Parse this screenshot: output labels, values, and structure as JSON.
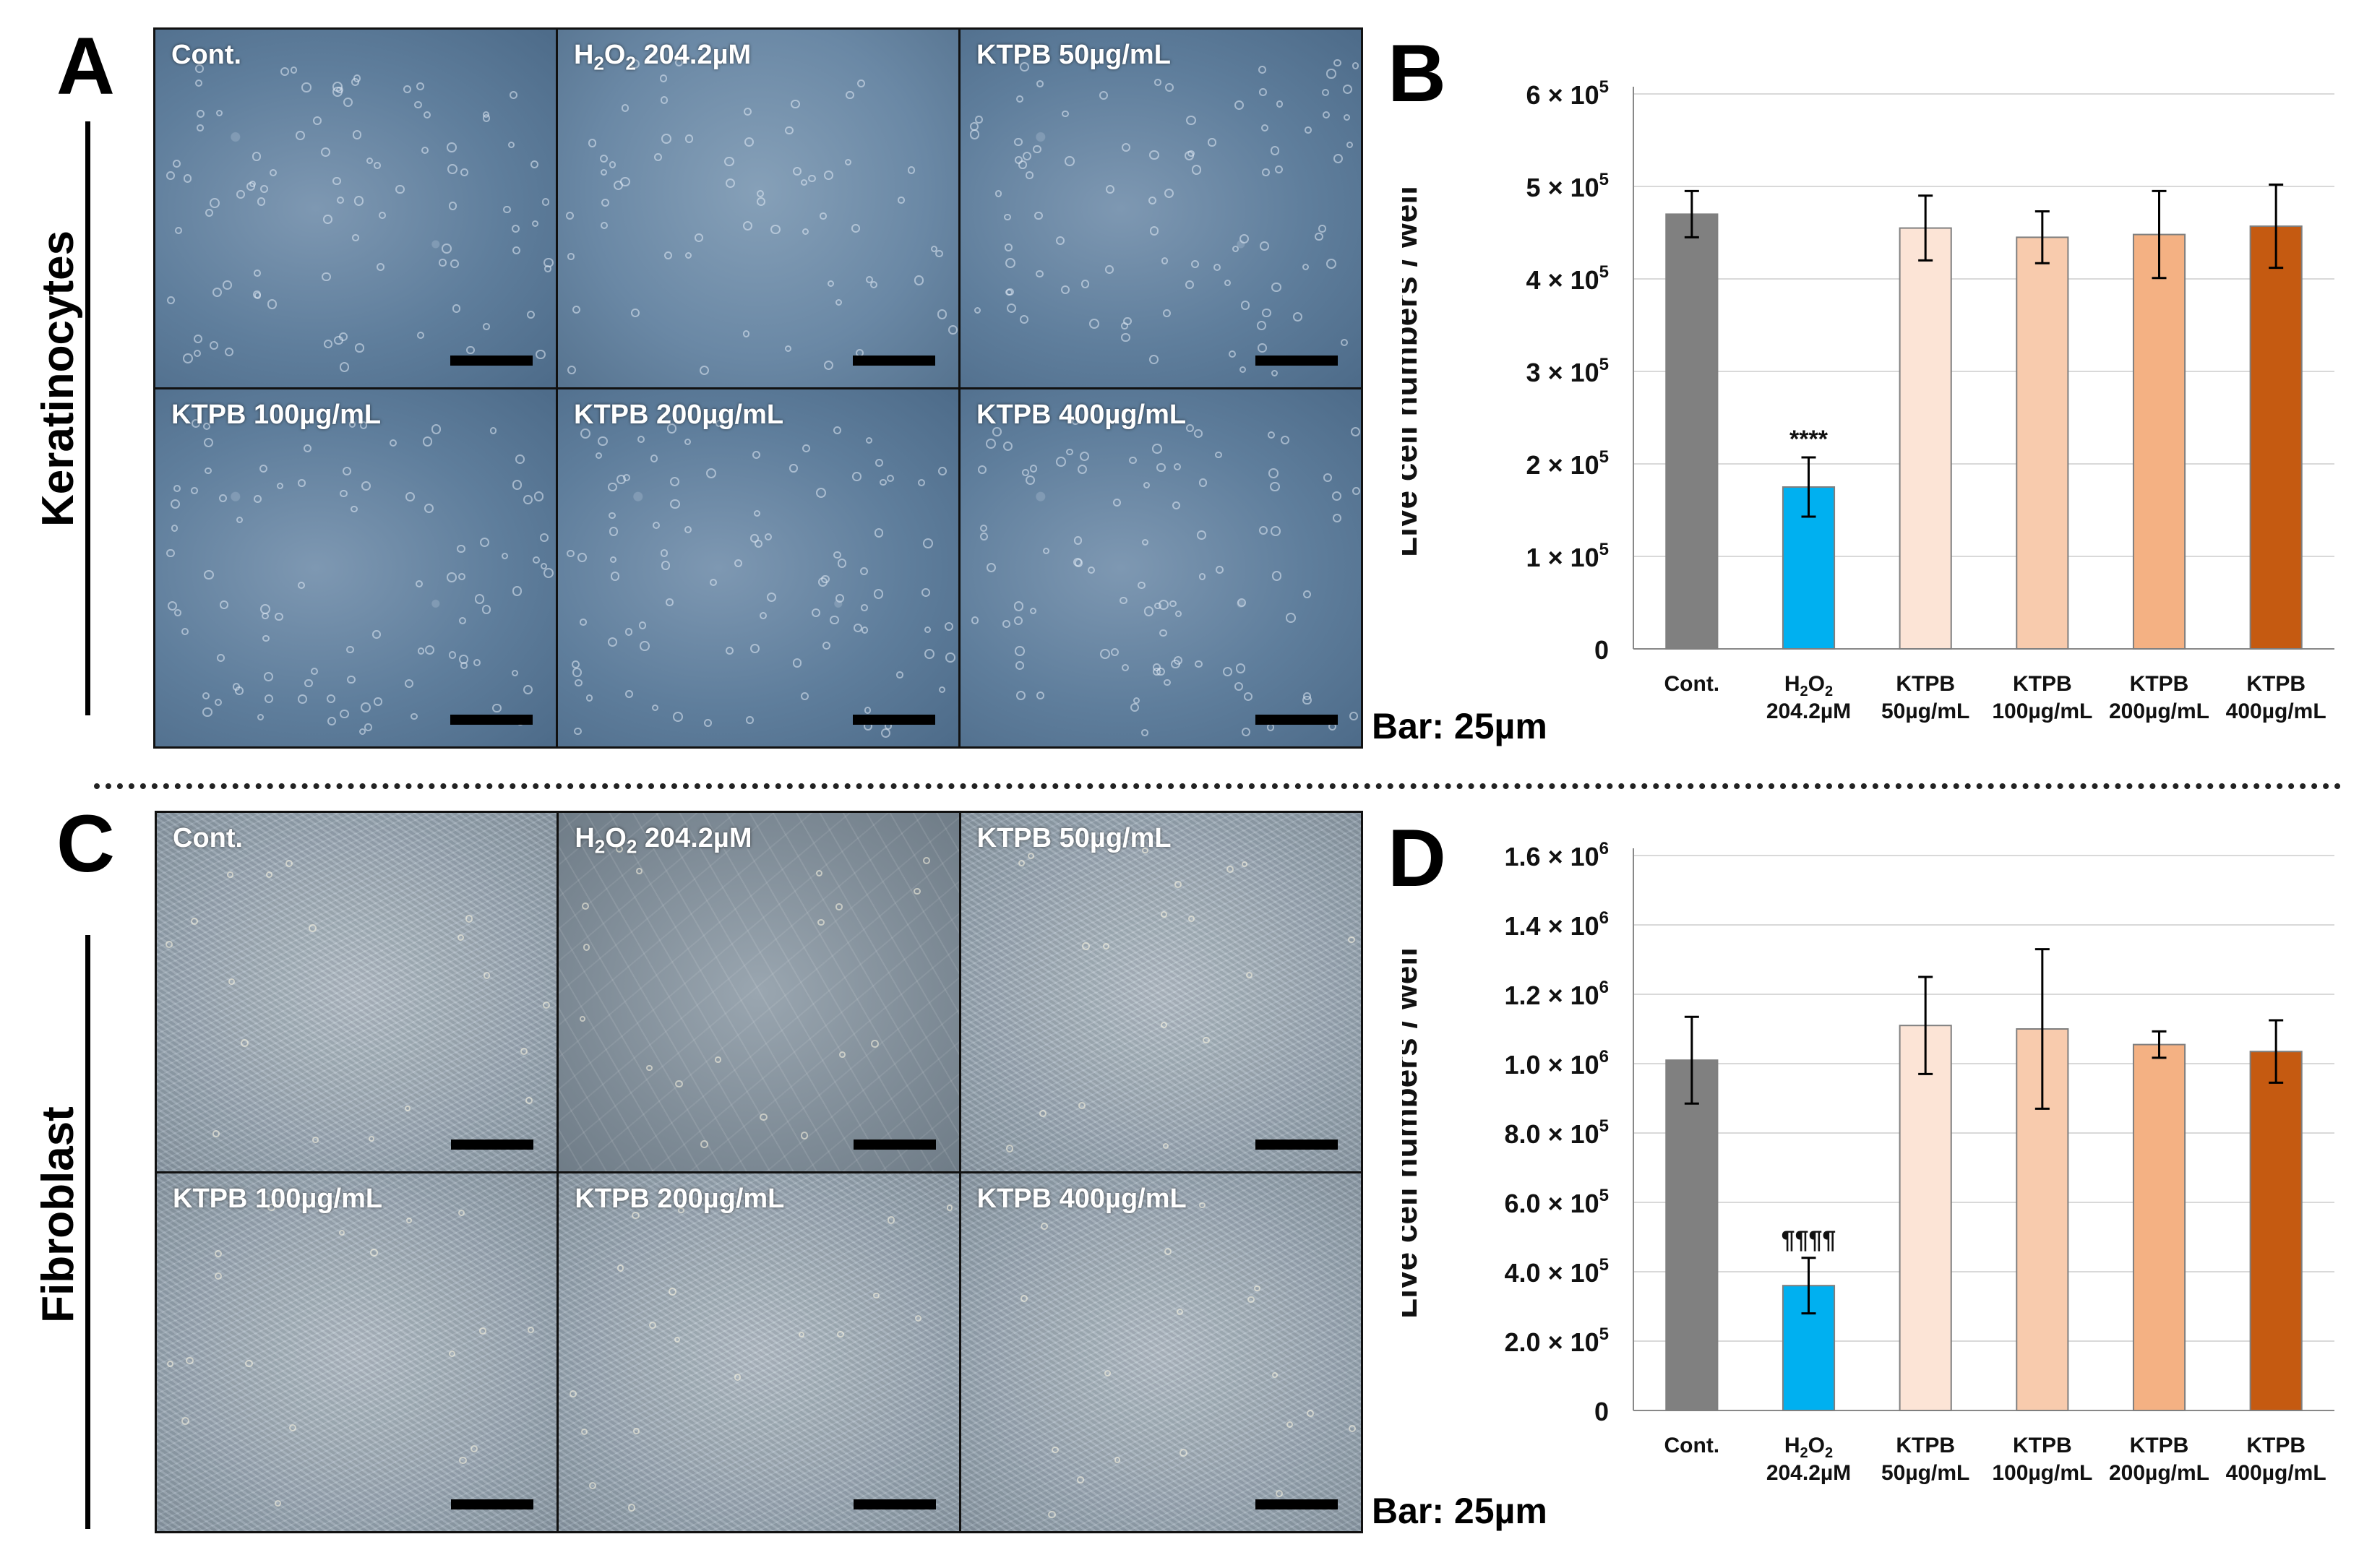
{
  "panels": {
    "A": "A",
    "B": "B",
    "C": "C",
    "D": "D"
  },
  "row_labels": {
    "top": "Keratinocytes",
    "bottom": "Fibroblast"
  },
  "micrographs": {
    "top": [
      {
        "label": "Cont."
      },
      {
        "label": "H2O2 204.2µM",
        "main": "H",
        "sub1": "2",
        "mid": "O",
        "sub2": "2",
        "rest": " 204.2µM"
      },
      {
        "label": "KTPB 50µg/mL"
      },
      {
        "label": "KTPB 100µg/mL"
      },
      {
        "label": "KTPB 200µg/mL"
      },
      {
        "label": "KTPB 400µg/mL"
      }
    ],
    "bottom": [
      {
        "label": "Cont."
      },
      {
        "label": "H2O2 204.2µM",
        "main": "H",
        "sub1": "2",
        "mid": "O",
        "sub2": "2",
        "rest": " 204.2µM"
      },
      {
        "label": "KTPB 50µg/mL"
      },
      {
        "label": "KTPB 100µg/mL"
      },
      {
        "label": "KTPB 200µg/mL"
      },
      {
        "label": "KTPB 400µg/mL"
      }
    ],
    "scale_caption_top": "Bar: 25µm",
    "scale_caption_bottom": "Bar: 25µm"
  },
  "colors": {
    "cont": "#808080",
    "h2o2": "#00b0f0",
    "ktpb50": "#fce4d6",
    "ktpb100": "#f8cbad",
    "ktpb200": "#f4b183",
    "ktpb400": "#c55a11"
  },
  "chart_data": [
    {
      "id": "B",
      "type": "bar",
      "title": "",
      "ylabel": "Live cell numbers / well",
      "xlabel": "",
      "ylim": [
        0,
        600000
      ],
      "yticks": [
        {
          "value": 0,
          "mant": "0",
          "exp": ""
        },
        {
          "value": 100000,
          "mant": "1 × 10",
          "exp": "5"
        },
        {
          "value": 200000,
          "mant": "2 × 10",
          "exp": "5"
        },
        {
          "value": 300000,
          "mant": "3 × 10",
          "exp": "5"
        },
        {
          "value": 400000,
          "mant": "4 × 10",
          "exp": "5"
        },
        {
          "value": 500000,
          "mant": "5 × 10",
          "exp": "5"
        },
        {
          "value": 600000,
          "mant": "6 × 10",
          "exp": "5"
        }
      ],
      "categories": [
        {
          "line1": "Cont.",
          "line2": ""
        },
        {
          "line1": "H2O2",
          "line2": "204.2µM"
        },
        {
          "line1": "KTPB",
          "line2": "50µg/mL"
        },
        {
          "line1": "KTPB",
          "line2": "100µg/mL"
        },
        {
          "line1": "KTPB",
          "line2": "200µg/mL"
        },
        {
          "line1": "KTPB",
          "line2": "400µg/mL"
        }
      ],
      "values": [
        470000,
        175000,
        455000,
        445000,
        448000,
        457000
      ],
      "errors": [
        25000,
        32000,
        35000,
        28000,
        47000,
        45000
      ],
      "annotations": [
        {
          "index": 1,
          "text": "****"
        }
      ],
      "grid": true
    },
    {
      "id": "D",
      "type": "bar",
      "title": "",
      "ylabel": "Live cell numbers / well",
      "xlabel": "",
      "ylim": [
        0,
        1600000
      ],
      "yticks": [
        {
          "value": 0,
          "mant": "0",
          "exp": ""
        },
        {
          "value": 200000,
          "mant": "2.0 × 10",
          "exp": "5"
        },
        {
          "value": 400000,
          "mant": "4.0 × 10",
          "exp": "5"
        },
        {
          "value": 600000,
          "mant": "6.0 × 10",
          "exp": "5"
        },
        {
          "value": 800000,
          "mant": "8.0 × 10",
          "exp": "5"
        },
        {
          "value": 1000000,
          "mant": "1.0 × 10",
          "exp": "6"
        },
        {
          "value": 1200000,
          "mant": "1.2 × 10",
          "exp": "6"
        },
        {
          "value": 1400000,
          "mant": "1.4 × 10",
          "exp": "6"
        },
        {
          "value": 1600000,
          "mant": "1.6 × 10",
          "exp": "6"
        }
      ],
      "categories": [
        {
          "line1": "Cont.",
          "line2": ""
        },
        {
          "line1": "H2O2",
          "line2": "204.2µM"
        },
        {
          "line1": "KTPB",
          "line2": "50µg/mL"
        },
        {
          "line1": "KTPB",
          "line2": "100µg/mL"
        },
        {
          "line1": "KTPB",
          "line2": "200µg/mL"
        },
        {
          "line1": "KTPB",
          "line2": "400µg/mL"
        }
      ],
      "values": [
        1010000,
        360000,
        1110000,
        1100000,
        1055000,
        1035000
      ],
      "errors": [
        125000,
        80000,
        140000,
        230000,
        38000,
        90000
      ],
      "annotations": [
        {
          "index": 1,
          "text": "¶¶¶¶"
        }
      ],
      "grid": true
    }
  ]
}
